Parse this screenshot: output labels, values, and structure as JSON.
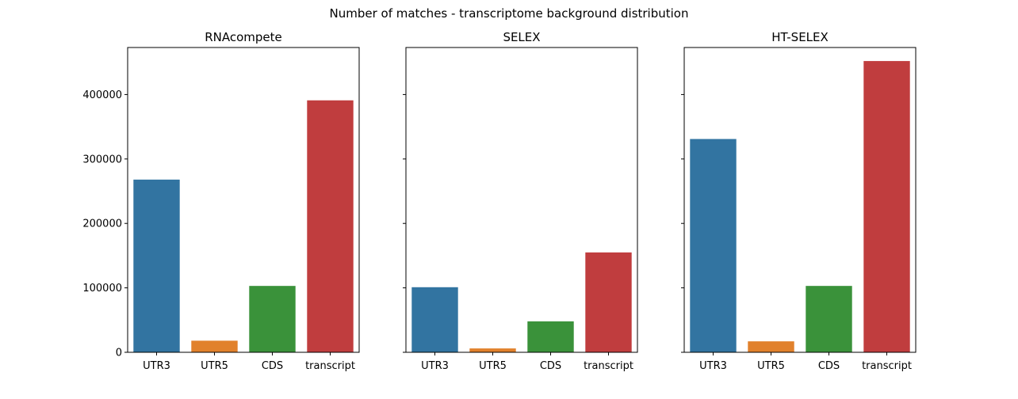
{
  "figure_title": "Number of matches - transcriptome background distribution",
  "chart_data": [
    {
      "type": "bar",
      "title": "RNAcompete",
      "categories": [
        "UTR3",
        "UTR5",
        "CDS",
        "transcript"
      ],
      "values": [
        268000,
        18000,
        103000,
        391000
      ],
      "ylim": [
        0,
        473000
      ],
      "yticks": [
        0,
        100000,
        200000,
        300000,
        400000
      ],
      "ytick_labels": [
        "0",
        "100000",
        "200000",
        "300000",
        "400000"
      ],
      "show_ytick_labels": true,
      "xlabel": "",
      "ylabel": "",
      "grid": false
    },
    {
      "type": "bar",
      "title": "SELEX",
      "categories": [
        "UTR3",
        "UTR5",
        "CDS",
        "transcript"
      ],
      "values": [
        101000,
        6000,
        48000,
        155000
      ],
      "ylim": [
        0,
        473000
      ],
      "yticks": [
        0,
        100000,
        200000,
        300000,
        400000
      ],
      "ytick_labels": [
        "0",
        "100000",
        "200000",
        "300000",
        "400000"
      ],
      "show_ytick_labels": false,
      "xlabel": "",
      "ylabel": "",
      "grid": false
    },
    {
      "type": "bar",
      "title": "HT-SELEX",
      "categories": [
        "UTR3",
        "UTR5",
        "CDS",
        "transcript"
      ],
      "values": [
        331000,
        17000,
        103000,
        452000
      ],
      "ylim": [
        0,
        473000
      ],
      "yticks": [
        0,
        100000,
        200000,
        300000,
        400000
      ],
      "ytick_labels": [
        "0",
        "100000",
        "200000",
        "300000",
        "400000"
      ],
      "show_ytick_labels": false,
      "xlabel": "",
      "ylabel": "",
      "grid": false
    }
  ],
  "bar_colors": [
    "#3274a1",
    "#e1812c",
    "#3a923a",
    "#c03d3e"
  ]
}
